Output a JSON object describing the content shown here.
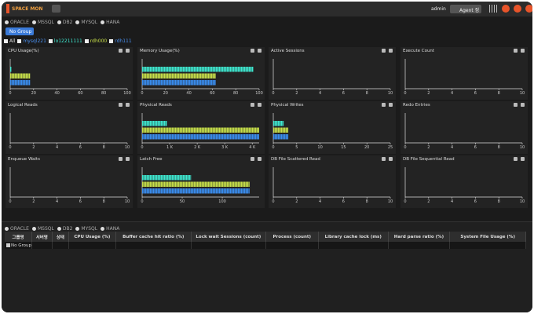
{
  "header": {
    "logo": "SPACE MON",
    "user": "admin",
    "agent_button": "Agent 정"
  },
  "db_types": [
    "ORACLE",
    "MSSQL",
    "DB2",
    "MYSQL",
    "HANA"
  ],
  "group_button": "No Group",
  "servers": [
    "All",
    "mysql221",
    "lo12211111",
    "rdh000",
    "rdh111"
  ],
  "chart_data": [
    {
      "type": "hbar",
      "title": "CPU Usage(%)",
      "values": [
        1,
        17,
        17
      ],
      "colors": [
        "#3ee8d0",
        "#c8e04a",
        "#3a8ef0"
      ],
      "xlim": [
        0,
        100
      ],
      "xticks": [
        0,
        20,
        40,
        60,
        80,
        100
      ]
    },
    {
      "type": "hbar",
      "title": "Memory Usage(%)",
      "values": [
        95,
        63,
        63
      ],
      "colors": [
        "#3ee8d0",
        "#c8e04a",
        "#3a8ef0"
      ],
      "xlim": [
        0,
        100
      ],
      "xticks": [
        0,
        20,
        40,
        60,
        80,
        100
      ]
    },
    {
      "type": "hbar",
      "title": "Active Sessions",
      "values": [],
      "colors": [],
      "xlim": [
        0,
        10
      ],
      "xticks": [
        0,
        2,
        4,
        6,
        8,
        10
      ]
    },
    {
      "type": "hbar",
      "title": "Execute Count",
      "values": [],
      "colors": [],
      "xlim": [
        0,
        10
      ],
      "xticks": [
        0,
        2,
        4,
        6,
        8,
        10
      ]
    },
    {
      "type": "hbar",
      "title": "Logical Reads",
      "values": [],
      "colors": [],
      "xlim": [
        0,
        10
      ],
      "xticks": [
        0,
        2,
        4,
        6,
        8,
        10
      ]
    },
    {
      "type": "hbar",
      "title": "Physical Reads",
      "values": [
        900,
        4250,
        4250
      ],
      "colors": [
        "#3ee8d0",
        "#c8e04a",
        "#3a8ef0"
      ],
      "xlim": [
        0,
        4250
      ],
      "xticks": [
        0,
        {
          "value": 1000,
          "label": "1 K"
        },
        {
          "value": 2000,
          "label": "2 K"
        },
        {
          "value": 3000,
          "label": "3 K"
        },
        {
          "value": 4000,
          "label": "4 K"
        }
      ]
    },
    {
      "type": "hbar",
      "title": "Physical Writes",
      "values": [
        2.2,
        3.2,
        3.2
      ],
      "colors": [
        "#3ee8d0",
        "#c8e04a",
        "#3a8ef0"
      ],
      "xlim": [
        0,
        25
      ],
      "xticks": [
        0,
        5,
        10,
        15,
        20,
        25
      ]
    },
    {
      "type": "hbar",
      "title": "Redo Entries",
      "values": [],
      "colors": [],
      "xlim": [
        0,
        10
      ],
      "xticks": [
        0,
        2,
        4,
        6,
        8,
        10
      ]
    },
    {
      "type": "hbar",
      "title": "Enqueue Waits",
      "values": [],
      "colors": [],
      "xlim": [
        0,
        10
      ],
      "xticks": [
        0,
        2,
        4,
        6,
        8,
        10
      ]
    },
    {
      "type": "hbar",
      "title": "Latch Free",
      "values": [
        61,
        134,
        134
      ],
      "colors": [
        "#3ee8d0",
        "#c8e04a",
        "#3a8ef0"
      ],
      "xlim": [
        0,
        146
      ],
      "xticks": [
        0,
        50,
        100
      ]
    },
    {
      "type": "hbar",
      "title": "DB File Scattered Read",
      "values": [],
      "colors": [],
      "xlim": [
        0,
        10
      ],
      "xticks": [
        0,
        2,
        4,
        6,
        8,
        10
      ]
    },
    {
      "type": "hbar",
      "title": "DB File Sequential Read",
      "values": [],
      "colors": [],
      "xlim": [
        0,
        10
      ],
      "xticks": [
        0,
        2,
        4,
        6,
        8,
        10
      ]
    }
  ],
  "bottom_db_types": [
    "ORACLE",
    "MSSQL",
    "DB2",
    "MYSQL",
    "HANA"
  ],
  "table": {
    "headers": [
      "그룹명",
      "서버명",
      "상태",
      "CPU Usage (%)",
      "Buffer cache hit ratio (%)",
      "Lock wait Sessions (count)",
      "Process (count)",
      "Library cache lock (ms)",
      "Hard parse ratio (%)",
      "System File Usage (%)"
    ],
    "rows": [
      [
        "No Group"
      ]
    ]
  }
}
